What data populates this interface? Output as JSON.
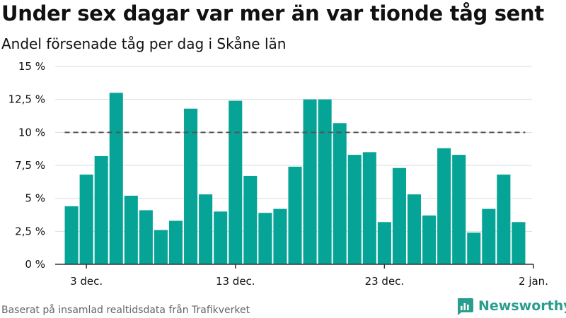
{
  "header": {
    "title": "Under sex dagar var mer än var tionde tåg sent",
    "subtitle": "Andel försenade tåg per dag i Skåne län"
  },
  "footer": {
    "source": "Baserat på insamlad realtidsdata från Trafikverket",
    "brand": "Newsworthy"
  },
  "colors": {
    "bar": "#06a497",
    "reference_line": "#555555",
    "grid": "#dddddd",
    "brand": "#2a9d8f"
  },
  "chart_data": {
    "type": "bar",
    "title": "Under sex dagar var mer än var tionde tåg sent",
    "subtitle": "Andel försenade tåg per dag i Skåne län",
    "xlabel": "",
    "ylabel": "",
    "x_start": "2019-12-01",
    "x_end": "2020-01-02",
    "categories": [
      "2019-12-02",
      "2019-12-03",
      "2019-12-04",
      "2019-12-05",
      "2019-12-06",
      "2019-12-07",
      "2019-12-08",
      "2019-12-09",
      "2019-12-10",
      "2019-12-11",
      "2019-12-12",
      "2019-12-13",
      "2019-12-14",
      "2019-12-15",
      "2019-12-16",
      "2019-12-17",
      "2019-12-18",
      "2019-12-19",
      "2019-12-20",
      "2019-12-21",
      "2019-12-22",
      "2019-12-23",
      "2019-12-24",
      "2019-12-25",
      "2019-12-26",
      "2019-12-27",
      "2019-12-28",
      "2019-12-29",
      "2019-12-30",
      "2019-12-31",
      "2020-01-01"
    ],
    "values": [
      4.4,
      6.8,
      8.2,
      13.0,
      5.2,
      4.1,
      2.6,
      3.3,
      11.8,
      5.3,
      4.0,
      12.4,
      6.7,
      3.9,
      4.2,
      7.4,
      12.5,
      12.5,
      10.7,
      8.3,
      8.5,
      3.2,
      7.3,
      5.3,
      3.7,
      8.8,
      8.3,
      2.4,
      4.2,
      6.8,
      3.2
    ],
    "reference_line": 10,
    "ylim": [
      0,
      15
    ],
    "y_ticks": [
      {
        "value": 0,
        "label": "0 %"
      },
      {
        "value": 2.5,
        "label": "2,5 %"
      },
      {
        "value": 5,
        "label": "5 %"
      },
      {
        "value": 7.5,
        "label": "7,5 %"
      },
      {
        "value": 10,
        "label": "10 %"
      },
      {
        "value": 12.5,
        "label": "12,5 %"
      },
      {
        "value": 15,
        "label": "15 %"
      }
    ],
    "x_ticks": [
      {
        "value": "2019-12-03",
        "label": "3 dec."
      },
      {
        "value": "2019-12-13",
        "label": "13 dec."
      },
      {
        "value": "2019-12-23",
        "label": "23 dec."
      },
      {
        "value": "2020-01-02",
        "label": "2 jan."
      }
    ],
    "grid": true,
    "legend": "none"
  }
}
